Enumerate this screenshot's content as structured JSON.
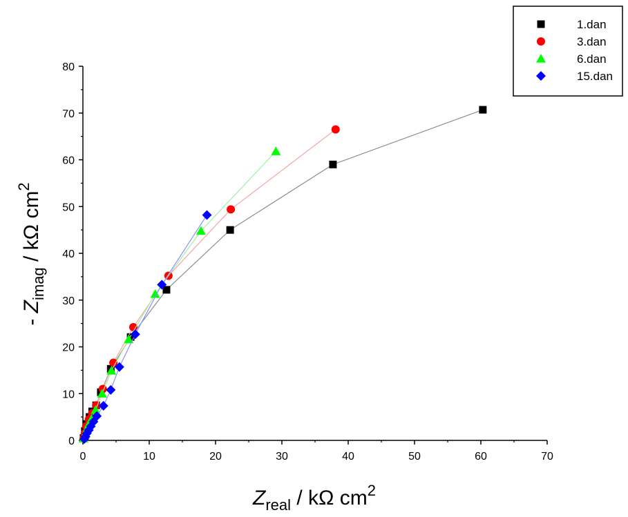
{
  "chart_data": {
    "type": "scatter",
    "xlabel": {
      "symbol": "Z",
      "sub": "real",
      "unit": " / kΩ cm",
      "sup": "2"
    },
    "ylabel": {
      "prefix": "- ",
      "symbol": "Z",
      "sub": "imag",
      "unit": " / kΩ cm",
      "sup": "2"
    },
    "xlim": [
      0,
      70
    ],
    "ylim": [
      0,
      80
    ],
    "xticks": [
      0,
      10,
      20,
      30,
      40,
      50,
      60,
      70
    ],
    "yticks": [
      0,
      10,
      20,
      30,
      40,
      50,
      60,
      70,
      80
    ],
    "grid": false,
    "legend_position": "top-right",
    "series": [
      {
        "name": "1.dan",
        "color": "#000000",
        "line_color": "#8c8c8c",
        "marker": "square",
        "points": [
          [
            0.1,
            0.5
          ],
          [
            0.3,
            2
          ],
          [
            0.6,
            3.5
          ],
          [
            1.0,
            5
          ],
          [
            1.4,
            6.2
          ],
          [
            2.0,
            7.5
          ],
          [
            2.7,
            10.3
          ],
          [
            4.2,
            15.3
          ],
          [
            7.2,
            22.1
          ],
          [
            12.6,
            32.2
          ],
          [
            22.2,
            45.0
          ],
          [
            37.7,
            59.0
          ],
          [
            60.3,
            70.7
          ]
        ]
      },
      {
        "name": "3.dan",
        "color": "#ff0000",
        "line_color": "#f4a5a5",
        "marker": "circle",
        "points": [
          [
            0.1,
            0.4
          ],
          [
            0.3,
            1.5
          ],
          [
            0.5,
            3
          ],
          [
            0.9,
            4.5
          ],
          [
            1.4,
            5.8
          ],
          [
            2.0,
            7.5
          ],
          [
            3.0,
            11.0
          ],
          [
            4.6,
            16.6
          ],
          [
            7.6,
            24.2
          ],
          [
            12.9,
            35.2
          ],
          [
            22.3,
            49.4
          ],
          [
            38.1,
            66.5
          ]
        ]
      },
      {
        "name": "6.dan",
        "color": "#00ff00",
        "line_color": "#9ef09e",
        "marker": "triangle",
        "points": [
          [
            0.1,
            0.4
          ],
          [
            0.3,
            1.2
          ],
          [
            0.6,
            2.4
          ],
          [
            0.9,
            3.5
          ],
          [
            1.3,
            4.6
          ],
          [
            1.9,
            6.5
          ],
          [
            2.9,
            10.0
          ],
          [
            4.3,
            14.9
          ],
          [
            6.9,
            21.6
          ],
          [
            10.9,
            31.3
          ],
          [
            17.8,
            44.8
          ],
          [
            29.1,
            61.8
          ]
        ]
      },
      {
        "name": "15.dan",
        "color": "#0000ff",
        "line_color": "#8c8cff",
        "marker": "diamond",
        "points": [
          [
            0.2,
            0.3
          ],
          [
            0.4,
            0.8
          ],
          [
            0.6,
            1.5
          ],
          [
            0.9,
            2.2
          ],
          [
            1.2,
            3.0
          ],
          [
            1.6,
            4.0
          ],
          [
            2.1,
            5.2
          ],
          [
            3.1,
            7.4
          ],
          [
            4.2,
            10.8
          ],
          [
            5.5,
            15.7
          ],
          [
            7.9,
            22.7
          ],
          [
            11.9,
            33.3
          ],
          [
            18.7,
            48.2
          ]
        ]
      }
    ]
  }
}
